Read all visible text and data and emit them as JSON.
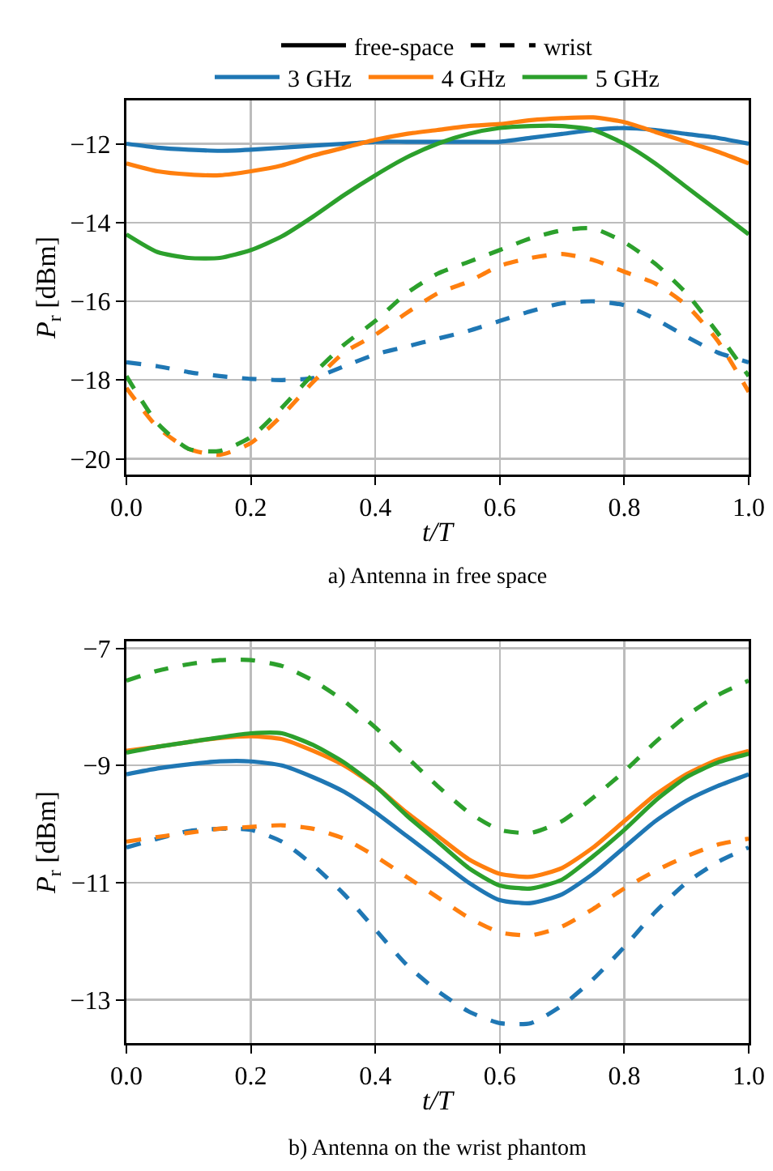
{
  "chart_data": [
    {
      "type": "line",
      "title": "a) Antenna in free space",
      "xlabel": "t/T",
      "ylabel": "P$_{r}$ [dBm]",
      "xlim": [
        0,
        1
      ],
      "xticks": [
        {
          "value": 0,
          "label": "0.0"
        },
        {
          "value": 0.2,
          "label": "0.2"
        },
        {
          "value": 0.4,
          "label": "0.4"
        },
        {
          "value": 0.6,
          "label": "0.6"
        },
        {
          "value": 0.8,
          "label": "0.8"
        },
        {
          "value": 1,
          "label": "1.0"
        }
      ],
      "ylim": [
        -20.4,
        -10.9
      ],
      "yticks": [
        {
          "value": -20,
          "label": "−20"
        },
        {
          "value": -18,
          "label": "−18"
        },
        {
          "value": -16,
          "label": "−16"
        },
        {
          "value": -14,
          "label": "−14"
        },
        {
          "value": -12,
          "label": "−12"
        }
      ],
      "grid": true,
      "legend": "top",
      "marker": "none",
      "x": [
        0,
        0.05,
        0.1,
        0.15,
        0.2,
        0.25,
        0.3,
        0.35,
        0.4,
        0.45,
        0.5,
        0.55,
        0.6,
        0.65,
        0.7,
        0.75,
        0.8,
        0.85,
        0.9,
        0.95,
        1
      ],
      "series": [
        {
          "name": "free-space",
          "color": "#000000",
          "line_style": "solid",
          "values": [
            null,
            null,
            null,
            null,
            null,
            null,
            null,
            null,
            null,
            null,
            null,
            null,
            null,
            null,
            null,
            null,
            null,
            null,
            null,
            null,
            null
          ]
        },
        {
          "name": "wrist",
          "color": "#000000",
          "line_style": "dashed",
          "values": [
            null,
            null,
            null,
            null,
            null,
            null,
            null,
            null,
            null,
            null,
            null,
            null,
            null,
            null,
            null,
            null,
            null,
            null,
            null,
            null,
            null
          ]
        },
        {
          "name": "3 GHz",
          "color": "#1f77b4",
          "line_style": "solid",
          "values": [
            -12.0,
            -12.1,
            -12.15,
            -12.18,
            -12.15,
            -12.1,
            -12.05,
            -12.0,
            -11.95,
            -11.95,
            -11.95,
            -11.95,
            -11.95,
            -11.85,
            -11.75,
            -11.65,
            -11.6,
            -11.65,
            -11.75,
            -11.85,
            -12.0
          ]
        },
        {
          "name": "4 GHz",
          "color": "#ff7f0e",
          "line_style": "solid",
          "values": [
            -12.5,
            -12.7,
            -12.78,
            -12.8,
            -12.7,
            -12.55,
            -12.3,
            -12.1,
            -11.9,
            -11.75,
            -11.65,
            -11.55,
            -11.5,
            -11.4,
            -11.35,
            -11.33,
            -11.45,
            -11.7,
            -11.95,
            -12.2,
            -12.5
          ]
        },
        {
          "name": "5 GHz",
          "color": "#2ca02c",
          "line_style": "solid",
          "values": [
            -14.3,
            -14.75,
            -14.9,
            -14.9,
            -14.7,
            -14.35,
            -13.85,
            -13.3,
            -12.8,
            -12.35,
            -12.0,
            -11.75,
            -11.6,
            -11.55,
            -11.55,
            -11.65,
            -12.0,
            -12.5,
            -13.1,
            -13.7,
            -14.3
          ]
        },
        {
          "color": "#1f77b4",
          "line_style": "dashed",
          "values": [
            -17.55,
            -17.65,
            -17.8,
            -17.9,
            -17.97,
            -18.0,
            -17.95,
            -17.65,
            -17.35,
            -17.15,
            -16.95,
            -16.75,
            -16.5,
            -16.25,
            -16.05,
            -16.0,
            -16.1,
            -16.45,
            -16.9,
            -17.3,
            -17.55
          ]
        },
        {
          "color": "#ff7f0e",
          "line_style": "dashed",
          "values": [
            -18.2,
            -19.2,
            -19.75,
            -19.9,
            -19.6,
            -18.9,
            -18.05,
            -17.3,
            -16.85,
            -16.3,
            -15.8,
            -15.5,
            -15.1,
            -14.9,
            -14.8,
            -14.95,
            -15.25,
            -15.55,
            -16.1,
            -17.0,
            -18.3
          ]
        },
        {
          "color": "#2ca02c",
          "line_style": "dashed",
          "values": [
            -17.9,
            -19.1,
            -19.75,
            -19.8,
            -19.45,
            -18.7,
            -17.85,
            -17.1,
            -16.5,
            -15.8,
            -15.3,
            -15.0,
            -14.7,
            -14.4,
            -14.2,
            -14.15,
            -14.5,
            -15.05,
            -15.8,
            -16.8,
            -17.9
          ]
        }
      ]
    },
    {
      "type": "line",
      "title": "b) Antenna on the wrist phantom",
      "xlabel": "t/T",
      "ylabel": "P$_{r}$ [dBm]",
      "xlim": [
        0,
        1
      ],
      "xticks": [
        {
          "value": 0,
          "label": "0.0"
        },
        {
          "value": 0.2,
          "label": "0.2"
        },
        {
          "value": 0.4,
          "label": "0.4"
        },
        {
          "value": 0.6,
          "label": "0.6"
        },
        {
          "value": 0.8,
          "label": "0.8"
        },
        {
          "value": 1,
          "label": "1.0"
        }
      ],
      "ylim": [
        -13.74,
        -6.88
      ],
      "yticks": [
        {
          "value": -13,
          "label": "−13"
        },
        {
          "value": -11,
          "label": "−11"
        },
        {
          "value": -9,
          "label": "−9"
        },
        {
          "value": -7,
          "label": "−7"
        }
      ],
      "grid": true,
      "marker": "none",
      "x": [
        0,
        0.05,
        0.1,
        0.15,
        0.2,
        0.25,
        0.3,
        0.35,
        0.4,
        0.45,
        0.5,
        0.55,
        0.6,
        0.65,
        0.7,
        0.75,
        0.8,
        0.85,
        0.9,
        0.95,
        1
      ],
      "series": [
        {
          "color": "#1f77b4",
          "line_style": "solid",
          "values": [
            -9.15,
            -9.05,
            -8.98,
            -8.93,
            -8.93,
            -9.0,
            -9.2,
            -9.45,
            -9.8,
            -10.2,
            -10.6,
            -11.0,
            -11.3,
            -11.35,
            -11.2,
            -10.85,
            -10.4,
            -9.95,
            -9.6,
            -9.35,
            -9.15
          ]
        },
        {
          "color": "#ff7f0e",
          "line_style": "solid",
          "values": [
            -8.75,
            -8.68,
            -8.6,
            -8.53,
            -8.5,
            -8.55,
            -8.75,
            -9.0,
            -9.35,
            -9.8,
            -10.2,
            -10.6,
            -10.85,
            -10.9,
            -10.75,
            -10.4,
            -9.95,
            -9.5,
            -9.15,
            -8.9,
            -8.75
          ]
        },
        {
          "color": "#2ca02c",
          "line_style": "solid",
          "values": [
            -8.78,
            -8.68,
            -8.6,
            -8.52,
            -8.45,
            -8.45,
            -8.65,
            -8.95,
            -9.35,
            -9.85,
            -10.3,
            -10.75,
            -11.05,
            -11.1,
            -10.95,
            -10.55,
            -10.1,
            -9.6,
            -9.2,
            -8.95,
            -8.8
          ]
        },
        {
          "color": "#1f77b4",
          "line_style": "dashed",
          "values": [
            -10.4,
            -10.25,
            -10.12,
            -10.08,
            -10.1,
            -10.3,
            -10.7,
            -11.2,
            -11.8,
            -12.4,
            -12.85,
            -13.2,
            -13.4,
            -13.4,
            -13.1,
            -12.65,
            -12.1,
            -11.5,
            -11.0,
            -10.65,
            -10.4
          ]
        },
        {
          "color": "#ff7f0e",
          "line_style": "dashed",
          "values": [
            -10.3,
            -10.22,
            -10.15,
            -10.08,
            -10.05,
            -10.02,
            -10.08,
            -10.25,
            -10.55,
            -10.9,
            -11.25,
            -11.6,
            -11.85,
            -11.9,
            -11.75,
            -11.45,
            -11.1,
            -10.8,
            -10.55,
            -10.35,
            -10.25
          ]
        },
        {
          "color": "#2ca02c",
          "line_style": "dashed",
          "values": [
            -7.55,
            -7.38,
            -7.27,
            -7.2,
            -7.2,
            -7.3,
            -7.55,
            -7.9,
            -8.35,
            -8.85,
            -9.35,
            -9.8,
            -10.1,
            -10.15,
            -9.95,
            -9.55,
            -9.1,
            -8.6,
            -8.15,
            -7.8,
            -7.55
          ]
        }
      ]
    }
  ]
}
